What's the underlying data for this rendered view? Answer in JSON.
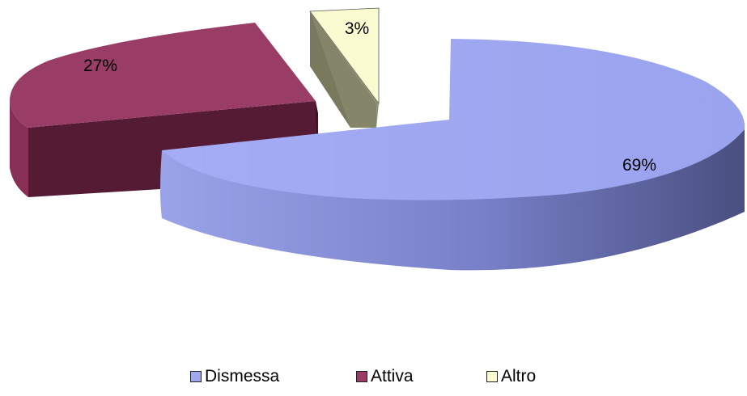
{
  "chart_data": {
    "type": "pie",
    "style": "3d-exploded",
    "slices": [
      {
        "name": "Dismessa",
        "value": 69,
        "label": "69%",
        "color": "#a0a8f0"
      },
      {
        "name": "Attiva",
        "value": 27,
        "label": "27%",
        "color": "#9a3d66"
      },
      {
        "name": "Altro",
        "value": 3,
        "label": "3%",
        "color": "#fbfbd2"
      }
    ],
    "legend_position": "bottom"
  }
}
